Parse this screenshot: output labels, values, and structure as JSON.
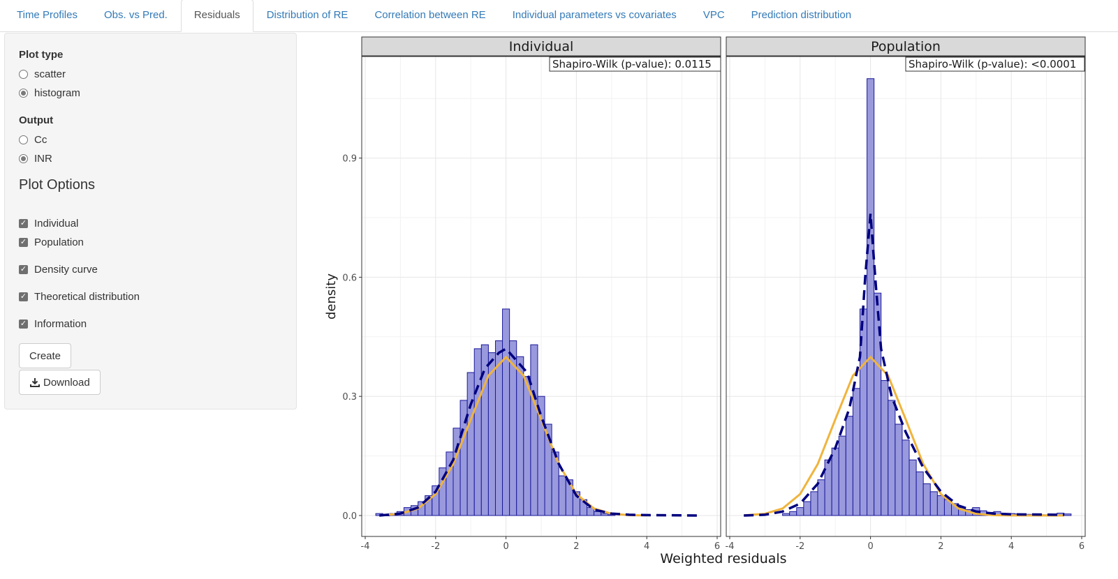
{
  "tabs": [
    {
      "label": "Time Profiles",
      "active": false
    },
    {
      "label": "Obs. vs Pred.",
      "active": false
    },
    {
      "label": "Residuals",
      "active": true
    },
    {
      "label": "Distribution of RE",
      "active": false
    },
    {
      "label": "Correlation between RE",
      "active": false
    },
    {
      "label": "Individual parameters vs covariates",
      "active": false
    },
    {
      "label": "VPC",
      "active": false
    },
    {
      "label": "Prediction distribution",
      "active": false
    }
  ],
  "sidebar": {
    "plot_type": {
      "label": "Plot type",
      "options": [
        "scatter",
        "histogram"
      ],
      "selected": "histogram"
    },
    "output": {
      "label": "Output",
      "options": [
        "Cc",
        "INR"
      ],
      "selected": "INR"
    },
    "plot_options": {
      "title": "Plot Options",
      "checkboxes": [
        {
          "label": "Individual",
          "checked": true
        },
        {
          "label": "Population",
          "checked": true
        },
        {
          "label": "Density curve",
          "checked": true
        },
        {
          "label": "Theoretical distribution",
          "checked": true
        },
        {
          "label": "Information",
          "checked": true
        }
      ]
    },
    "create_label": "Create",
    "download_label": "Download"
  },
  "icons": {
    "download": "download-icon"
  },
  "colors": {
    "tab_link": "#337ab7",
    "bar_fill": "#9999dd",
    "bar_stroke": "#1a1a99",
    "density_curve": "#00007f",
    "theoretical_curve": "#f0b43c",
    "strip_bg": "#d9d9d9"
  },
  "chart_data": {
    "type": "bar",
    "xlabel": "Weighted residuals",
    "ylabel": "density",
    "xlim": [
      -4,
      6
    ],
    "ylim": [
      0,
      1.1
    ],
    "x_ticks": [
      -4,
      -2,
      0,
      2,
      4,
      6
    ],
    "x_tick_labels": [
      "-4",
      "-2",
      "0",
      "2",
      "4",
      "6"
    ],
    "y_ticks": [
      0.0,
      0.3,
      0.6,
      0.9
    ],
    "y_tick_labels": [
      "0.0",
      "0.3",
      "0.6",
      "0.9"
    ],
    "grid": true,
    "bin_width": 0.2,
    "panels": [
      {
        "name": "Individual",
        "annotation": "Shapiro-Wilk (p-value): 0.0115",
        "histogram": {
          "bin_centers": [
            -3.6,
            -3.4,
            -3.2,
            -3.0,
            -2.8,
            -2.6,
            -2.4,
            -2.2,
            -2.0,
            -1.8,
            -1.6,
            -1.4,
            -1.2,
            -1.0,
            -0.8,
            -0.6,
            -0.4,
            -0.2,
            0.0,
            0.2,
            0.4,
            0.6,
            0.8,
            1.0,
            1.2,
            1.4,
            1.6,
            1.8,
            2.0,
            2.2,
            2.4,
            2.6,
            2.8,
            3.0
          ],
          "density": [
            0.005,
            0.0,
            0.005,
            0.01,
            0.02,
            0.025,
            0.035,
            0.05,
            0.075,
            0.12,
            0.16,
            0.22,
            0.29,
            0.36,
            0.42,
            0.43,
            0.41,
            0.44,
            0.52,
            0.44,
            0.4,
            0.35,
            0.43,
            0.3,
            0.23,
            0.16,
            0.1,
            0.09,
            0.06,
            0.04,
            0.02,
            0.01,
            0.005,
            0.002
          ]
        },
        "density_curve": {
          "x": [
            -3.6,
            -3.0,
            -2.5,
            -2.0,
            -1.5,
            -1.0,
            -0.6,
            -0.2,
            0.0,
            0.2,
            0.6,
            1.0,
            1.5,
            2.0,
            2.5,
            3.0,
            3.5,
            4.0,
            5.5
          ],
          "y": [
            0.0,
            0.005,
            0.02,
            0.06,
            0.14,
            0.28,
            0.37,
            0.41,
            0.42,
            0.4,
            0.36,
            0.25,
            0.13,
            0.05,
            0.015,
            0.005,
            0.002,
            0.001,
            0.0
          ]
        },
        "theoretical_curve": {
          "x": [
            -3.6,
            -3.0,
            -2.5,
            -2.0,
            -1.5,
            -1.0,
            -0.5,
            0.0,
            0.5,
            1.0,
            1.5,
            2.0,
            2.5,
            3.0,
            3.5,
            4.0
          ],
          "y": [
            0.0006,
            0.0044,
            0.0175,
            0.054,
            0.1295,
            0.242,
            0.3521,
            0.3989,
            0.3521,
            0.242,
            0.1295,
            0.054,
            0.0175,
            0.0044,
            0.0009,
            0.0001
          ]
        }
      },
      {
        "name": "Population",
        "annotation": "Shapiro-Wilk (p-value): <0.0001",
        "histogram": {
          "bin_centers": [
            -2.4,
            -2.2,
            -2.0,
            -1.8,
            -1.6,
            -1.4,
            -1.2,
            -1.0,
            -0.8,
            -0.6,
            -0.4,
            -0.2,
            0.0,
            0.2,
            0.4,
            0.6,
            0.8,
            1.0,
            1.2,
            1.4,
            1.6,
            1.8,
            2.0,
            2.2,
            2.4,
            2.6,
            2.8,
            3.0,
            3.2,
            3.4,
            3.6,
            3.8,
            4.0,
            4.2,
            4.4,
            4.6,
            4.8,
            5.0,
            5.2,
            5.4,
            5.6
          ],
          "density": [
            0.005,
            0.01,
            0.02,
            0.035,
            0.06,
            0.09,
            0.14,
            0.17,
            0.2,
            0.25,
            0.32,
            0.52,
            1.1,
            0.56,
            0.34,
            0.29,
            0.23,
            0.19,
            0.14,
            0.11,
            0.08,
            0.06,
            0.05,
            0.04,
            0.03,
            0.02,
            0.015,
            0.02,
            0.012,
            0.008,
            0.01,
            0.005,
            0.005,
            0.004,
            0.003,
            0.003,
            0.002,
            0.002,
            0.002,
            0.006,
            0.004
          ]
        },
        "density_curve": {
          "x": [
            -3.6,
            -3.0,
            -2.5,
            -2.0,
            -1.5,
            -1.0,
            -0.6,
            -0.3,
            -0.15,
            0.0,
            0.15,
            0.3,
            0.6,
            1.0,
            1.5,
            2.0,
            2.5,
            3.0,
            3.5,
            4.0,
            5.5
          ],
          "y": [
            0.0,
            0.002,
            0.01,
            0.03,
            0.08,
            0.17,
            0.27,
            0.4,
            0.6,
            0.76,
            0.58,
            0.42,
            0.3,
            0.21,
            0.12,
            0.06,
            0.025,
            0.01,
            0.005,
            0.003,
            0.002
          ]
        },
        "theoretical_curve": {
          "x": [
            -3.6,
            -3.0,
            -2.5,
            -2.0,
            -1.5,
            -1.0,
            -0.5,
            0.0,
            0.5,
            1.0,
            1.5,
            2.0,
            2.5,
            3.0,
            3.5,
            4.0,
            5.5
          ],
          "y": [
            0.0006,
            0.0044,
            0.0175,
            0.054,
            0.1295,
            0.242,
            0.3521,
            0.3989,
            0.3521,
            0.242,
            0.1295,
            0.054,
            0.0175,
            0.0044,
            0.0009,
            0.0001,
            0.0
          ]
        }
      }
    ]
  }
}
